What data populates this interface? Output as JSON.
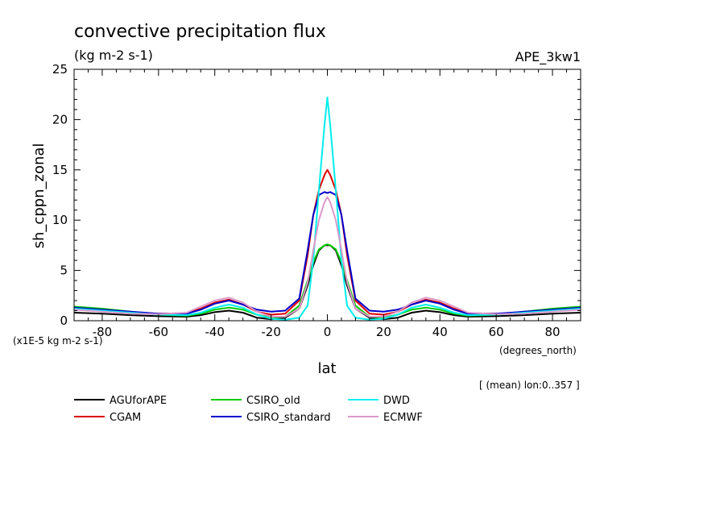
{
  "title": "convective precipitation flux",
  "units": "(kg m-2 s-1)",
  "experiment": "APE_3kw1",
  "ylabel": "sh_cppn_zonal",
  "xlabel": "lat",
  "scale_note": "(x1E-5 kg m-2 s-1)",
  "x_units": "(degrees_north)",
  "footnote": "[ (mean) lon:0..357 ]",
  "chart_data": {
    "type": "line",
    "title": "convective precipitation flux",
    "xlabel": "lat",
    "ylabel": "sh_cppn_zonal",
    "xlim": [
      -90,
      90
    ],
    "ylim": [
      0,
      25
    ],
    "xticks": [
      -80,
      -60,
      -40,
      -20,
      0,
      20,
      40,
      60,
      80
    ],
    "xtick_labels": [
      "-80",
      "-60",
      "-40",
      "-20",
      "0",
      "20",
      "40",
      "60",
      "80"
    ],
    "yticks": [
      0,
      5,
      10,
      15,
      20,
      25
    ],
    "ytick_labels": [
      "0",
      "5",
      "10",
      "15",
      "20",
      "25"
    ],
    "grid": false,
    "legend": "below",
    "series": [
      {
        "name": "AGUforAPE",
        "color": "#000000",
        "x": [
          -90,
          -80,
          -70,
          -60,
          -50,
          -45,
          -40,
          -35,
          -30,
          -25,
          -20,
          -15,
          -10,
          -7,
          -5,
          -3,
          -1,
          0,
          1,
          3,
          5,
          7,
          10,
          15,
          20,
          25,
          30,
          35,
          40,
          45,
          50,
          60,
          70,
          80,
          90
        ],
        "y": [
          0.8,
          0.7,
          0.55,
          0.45,
          0.4,
          0.55,
          0.85,
          1.0,
          0.8,
          0.3,
          0.15,
          0.3,
          1.2,
          3.5,
          5.5,
          7.0,
          7.5,
          7.5,
          7.5,
          7.0,
          5.5,
          3.5,
          1.2,
          0.3,
          0.15,
          0.3,
          0.8,
          1.0,
          0.85,
          0.55,
          0.4,
          0.45,
          0.55,
          0.7,
          0.8
        ]
      },
      {
        "name": "CGAM",
        "color": "#e00000",
        "x": [
          -90,
          -80,
          -70,
          -60,
          -50,
          -45,
          -40,
          -35,
          -30,
          -25,
          -20,
          -15,
          -10,
          -7,
          -5,
          -3,
          -1,
          0,
          1,
          3,
          5,
          7,
          10,
          15,
          20,
          25,
          30,
          35,
          40,
          45,
          50,
          60,
          70,
          80,
          90
        ],
        "y": [
          1.2,
          1.0,
          0.8,
          0.7,
          0.75,
          1.2,
          1.8,
          2.1,
          1.6,
          0.9,
          0.6,
          0.7,
          2.0,
          6.5,
          10.5,
          13.0,
          14.5,
          15.0,
          14.5,
          13.0,
          10.5,
          6.5,
          2.0,
          0.7,
          0.6,
          0.9,
          1.6,
          2.1,
          1.8,
          1.2,
          0.75,
          0.7,
          0.8,
          1.0,
          1.2
        ]
      },
      {
        "name": "CSIRO_old",
        "color": "#00cc00",
        "x": [
          -90,
          -80,
          -70,
          -60,
          -50,
          -45,
          -40,
          -35,
          -30,
          -25,
          -20,
          -15,
          -10,
          -7,
          -5,
          -3,
          -1,
          0,
          1,
          3,
          5,
          7,
          10,
          15,
          20,
          25,
          30,
          35,
          40,
          45,
          50,
          60,
          70,
          80,
          90
        ],
        "y": [
          1.4,
          1.2,
          0.9,
          0.6,
          0.5,
          0.7,
          1.1,
          1.3,
          1.1,
          0.6,
          0.3,
          0.4,
          1.5,
          4.0,
          5.8,
          7.1,
          7.5,
          7.6,
          7.5,
          7.1,
          5.8,
          4.0,
          1.5,
          0.4,
          0.3,
          0.6,
          1.1,
          1.3,
          1.1,
          0.7,
          0.5,
          0.6,
          0.9,
          1.2,
          1.4
        ]
      },
      {
        "name": "CSIRO_standard",
        "color": "#0000cc",
        "x": [
          -90,
          -80,
          -70,
          -60,
          -50,
          -45,
          -40,
          -35,
          -30,
          -25,
          -20,
          -15,
          -10,
          -7,
          -5,
          -3,
          -1,
          0,
          1,
          3,
          5,
          7,
          10,
          15,
          20,
          25,
          30,
          35,
          40,
          45,
          50,
          60,
          70,
          80,
          90
        ],
        "y": [
          1.3,
          1.1,
          0.9,
          0.7,
          0.7,
          1.1,
          1.7,
          2.0,
          1.6,
          1.1,
          0.9,
          1.0,
          2.2,
          7.0,
          10.5,
          12.5,
          12.8,
          12.7,
          12.8,
          12.5,
          10.5,
          7.0,
          2.2,
          1.0,
          0.9,
          1.1,
          1.6,
          2.0,
          1.7,
          1.1,
          0.7,
          0.7,
          0.9,
          1.1,
          1.3
        ]
      },
      {
        "name": "DWD",
        "color": "#00eeee",
        "x": [
          -90,
          -80,
          -70,
          -60,
          -50,
          -45,
          -40,
          -35,
          -30,
          -25,
          -20,
          -15,
          -10,
          -7,
          -5,
          -3,
          -1,
          0,
          1,
          3,
          5,
          7,
          10,
          15,
          20,
          25,
          30,
          35,
          40,
          45,
          50,
          60,
          70,
          80,
          90
        ],
        "y": [
          1.2,
          1.0,
          0.8,
          0.6,
          0.55,
          0.8,
          1.3,
          1.6,
          1.3,
          0.6,
          0.2,
          0.1,
          0.3,
          1.5,
          6.0,
          13.0,
          19.5,
          22.2,
          19.5,
          13.0,
          6.0,
          1.5,
          0.3,
          0.1,
          0.2,
          0.6,
          1.3,
          1.6,
          1.3,
          0.8,
          0.55,
          0.6,
          0.8,
          1.0,
          1.2
        ]
      },
      {
        "name": "ECMWF",
        "color": "#dd99cc",
        "x": [
          -90,
          -80,
          -70,
          -60,
          -50,
          -45,
          -40,
          -35,
          -30,
          -25,
          -20,
          -15,
          -10,
          -7,
          -5,
          -3,
          -1,
          0,
          1,
          3,
          5,
          7,
          10,
          15,
          20,
          25,
          30,
          35,
          40,
          45,
          50,
          60,
          70,
          80,
          90
        ],
        "y": [
          1.1,
          0.9,
          0.7,
          0.65,
          0.8,
          1.4,
          2.0,
          2.3,
          1.8,
          0.9,
          0.4,
          0.4,
          1.2,
          3.8,
          7.0,
          10.0,
          11.8,
          12.3,
          11.8,
          10.0,
          7.0,
          3.8,
          1.2,
          0.4,
          0.4,
          0.9,
          1.8,
          2.3,
          2.0,
          1.4,
          0.8,
          0.65,
          0.7,
          0.9,
          1.1
        ]
      }
    ]
  }
}
